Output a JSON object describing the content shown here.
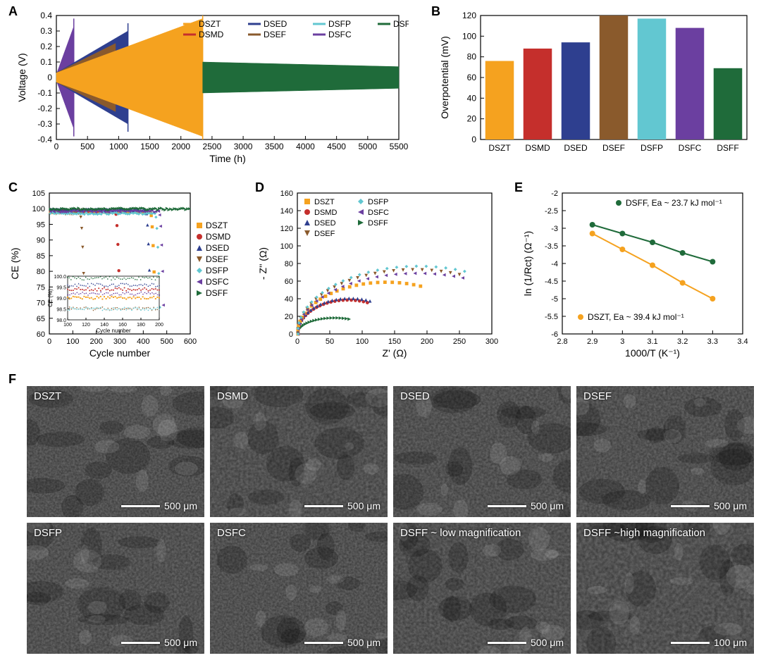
{
  "colors": {
    "DSZT": "#f5a21f",
    "DSMD": "#c52f2c",
    "DSED": "#2e3f8f",
    "DSEF": "#8a5a2c",
    "DSFP": "#62c7d1",
    "DSFC": "#6b3fa0",
    "DSFF": "#1f6b3a",
    "axis": "#000000",
    "grid": "#e6e6e6",
    "bg": "#ffffff"
  },
  "labels": [
    "DSZT",
    "DSMD",
    "DSED",
    "DSEF",
    "DSFP",
    "DSFC",
    "DSFF"
  ],
  "panelA": {
    "label": "A",
    "xlabel": "Time (h)",
    "ylabel": "Voltage (V)",
    "xlim": [
      0,
      5500
    ],
    "xtick_step": 500,
    "ylim": [
      -0.4,
      0.4
    ],
    "ytick_step": 0.1,
    "title_fontsize": 13,
    "tick_fontsize": 12,
    "envelopes": [
      {
        "name": "DSFC",
        "color": "#6b3fa0",
        "start": 0,
        "end": 280,
        "amp0": 0.02,
        "amp1": 0.33,
        "spike": true
      },
      {
        "name": "DSMD",
        "color": "#c52f2c",
        "start": 0,
        "end": 700,
        "amp0": 0.03,
        "amp1": 0.16
      },
      {
        "name": "DSED",
        "color": "#2e3f8f",
        "start": 0,
        "end": 1150,
        "amp0": 0.03,
        "amp1": 0.3,
        "spike": true
      },
      {
        "name": "DSEF",
        "color": "#8a5a2c",
        "start": 0,
        "end": 950,
        "amp0": 0.03,
        "amp1": 0.22
      },
      {
        "name": "DSFP",
        "color": "#62c7d1",
        "start": 0,
        "end": 1600,
        "amp0": 0.03,
        "amp1": 0.18
      },
      {
        "name": "DSZT",
        "color": "#f5a21f",
        "start": 0,
        "end": 2350,
        "amp0": 0.03,
        "amp1": 0.38,
        "spike": true
      },
      {
        "name": "DSFF",
        "color": "#1f6b3a",
        "start": 2350,
        "end": 5500,
        "amp0": 0.1,
        "amp1": 0.07
      }
    ],
    "legend": {
      "cols": 2,
      "pos": "top-right"
    }
  },
  "panelB": {
    "label": "B",
    "ylabel": "Overpotential (mV)",
    "ylim": [
      0,
      120
    ],
    "ytick_step": 20,
    "categories": [
      "DSZT",
      "DSMD",
      "DSED",
      "DSEF",
      "DSFP",
      "DSFC",
      "DSFF"
    ],
    "values": [
      76,
      88,
      94,
      120,
      117,
      108,
      69
    ],
    "bar_colors": [
      "#f5a21f",
      "#c52f2c",
      "#2e3f8f",
      "#8a5a2c",
      "#62c7d1",
      "#6b3fa0",
      "#1f6b3a"
    ],
    "bar_width": 0.75,
    "tick_fontsize": 12
  },
  "panelC": {
    "label": "C",
    "xlabel": "Cycle number",
    "ylabel": "CE (%)",
    "xlim": [
      0,
      600
    ],
    "xtick_step": 100,
    "ylim": [
      60,
      105
    ],
    "ytick_step": 5,
    "series": [
      {
        "name": "DSZT",
        "color": "#f5a21f",
        "marker": "square",
        "plateau": 99.0,
        "drop_at": 430
      },
      {
        "name": "DSMD",
        "color": "#c52f2c",
        "marker": "circle",
        "plateau": 99.4,
        "drop_at": 280
      },
      {
        "name": "DSED",
        "color": "#2e3f8f",
        "marker": "triangle-up",
        "plateau": 99.6,
        "drop_at": 410
      },
      {
        "name": "DSEF",
        "color": "#8a5a2c",
        "marker": "triangle-down",
        "plateau": 98.5,
        "drop_at": 130
      },
      {
        "name": "DSFP",
        "color": "#62c7d1",
        "marker": "diamond",
        "plateau": 98.5,
        "drop_at": 450
      },
      {
        "name": "DSFC",
        "color": "#6b3fa0",
        "marker": "triangle-left",
        "plateau": 99.2,
        "drop_at": 465
      },
      {
        "name": "DSFF",
        "color": "#1f6b3a",
        "marker": "triangle-right",
        "plateau": 99.9,
        "drop_at": 600
      }
    ],
    "inset": {
      "xlabel": "Cycle number",
      "ylabel": "CE (%)",
      "xlim": [
        100,
        200
      ],
      "xtick_step": 20,
      "ylim": [
        98.0,
        100.0
      ],
      "ytick_step": 0.5
    },
    "legend_pos": "right"
  },
  "panelD": {
    "label": "D",
    "xlabel": "Z' (Ω)",
    "ylabel": "- Z'' (Ω)",
    "xlim": [
      0,
      300
    ],
    "xtick_step": 50,
    "ylim": [
      0,
      160
    ],
    "ytick_step": 20,
    "arcs": [
      {
        "name": "DSFF",
        "color": "#1f6b3a",
        "endx": 80,
        "endy": 18
      },
      {
        "name": "DSMD",
        "color": "#c52f2c",
        "endx": 108,
        "endy": 38
      },
      {
        "name": "DSED",
        "color": "#2e3f8f",
        "endx": 112,
        "endy": 40
      },
      {
        "name": "DSZT",
        "color": "#f5a21f",
        "endx": 190,
        "endy": 58
      },
      {
        "name": "DSFC",
        "color": "#6b3fa0",
        "endx": 255,
        "endy": 68
      },
      {
        "name": "DSEF",
        "color": "#8a5a2c",
        "endx": 250,
        "endy": 72
      },
      {
        "name": "DSFP",
        "color": "#62c7d1",
        "endx": 258,
        "endy": 76
      }
    ],
    "legend_pos": "top-inside"
  },
  "panelE": {
    "label": "E",
    "xlabel": "1000/T (K⁻¹)",
    "ylabel": "ln (1/Rct) (Ω⁻¹)",
    "xlim": [
      2.8,
      3.4
    ],
    "xtick_step": 0.1,
    "ylim": [
      -6.0,
      -2.0
    ],
    "ytick_step": 0.5,
    "series": [
      {
        "name": "DSFF",
        "color": "#1f6b3a",
        "label": "DSFF, Ea ~ 23.7 kJ mol⁻¹",
        "points": [
          [
            2.9,
            -2.9
          ],
          [
            3.0,
            -3.15
          ],
          [
            3.1,
            -3.4
          ],
          [
            3.2,
            -3.7
          ],
          [
            3.3,
            -3.95
          ]
        ]
      },
      {
        "name": "DSZT",
        "color": "#f5a21f",
        "label": "DSZT, Ea ~ 39.4 kJ mol⁻¹",
        "points": [
          [
            2.9,
            -3.15
          ],
          [
            3.0,
            -3.6
          ],
          [
            3.1,
            -4.05
          ],
          [
            3.2,
            -4.55
          ],
          [
            3.3,
            -5.0
          ]
        ]
      }
    ]
  },
  "panelF": {
    "label": "F",
    "tiles": [
      {
        "label": "DSZT",
        "scale": "500 μm"
      },
      {
        "label": "DSMD",
        "scale": "500 μm"
      },
      {
        "label": "DSED",
        "scale": "500 μm"
      },
      {
        "label": "DSEF",
        "scale": "500 μm"
      },
      {
        "label": "DSFP",
        "scale": "500 μm"
      },
      {
        "label": "DSFC",
        "scale": "500 μm"
      },
      {
        "label": "DSFF ~ low magnification",
        "scale": "500 μm"
      },
      {
        "label": "DSFF ~high magnification",
        "scale": "100 μm"
      }
    ]
  }
}
